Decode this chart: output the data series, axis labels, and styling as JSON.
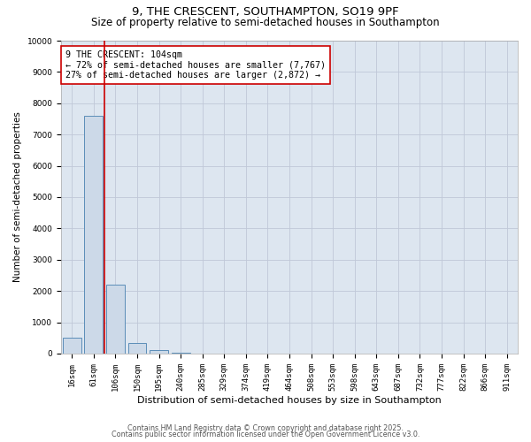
{
  "title": "9, THE CRESCENT, SOUTHAMPTON, SO19 9PF",
  "subtitle": "Size of property relative to semi-detached houses in Southampton",
  "xlabel": "Distribution of semi-detached houses by size in Southampton",
  "ylabel": "Number of semi-detached properties",
  "categories": [
    "16sqm",
    "61sqm",
    "106sqm",
    "150sqm",
    "195sqm",
    "240sqm",
    "285sqm",
    "329sqm",
    "374sqm",
    "419sqm",
    "464sqm",
    "508sqm",
    "553sqm",
    "598sqm",
    "643sqm",
    "687sqm",
    "732sqm",
    "777sqm",
    "822sqm",
    "866sqm",
    "911sqm"
  ],
  "values": [
    500,
    7600,
    2200,
    350,
    110,
    15,
    0,
    0,
    0,
    0,
    0,
    0,
    0,
    0,
    0,
    0,
    0,
    0,
    0,
    0,
    0
  ],
  "bar_color": "#ccd9e8",
  "bar_edge_color": "#5b8db8",
  "property_line_color": "#cc0000",
  "annotation_text": "9 THE CRESCENT: 104sqm\n← 72% of semi-detached houses are smaller (7,767)\n27% of semi-detached houses are larger (2,872) →",
  "annotation_box_color": "#cc0000",
  "ylim": [
    0,
    10000
  ],
  "yticks": [
    0,
    1000,
    2000,
    3000,
    4000,
    5000,
    6000,
    7000,
    8000,
    9000,
    10000
  ],
  "grid_color": "#c0c8d8",
  "background_color": "#dde6f0",
  "footer_line1": "Contains HM Land Registry data © Crown copyright and database right 2025.",
  "footer_line2": "Contains public sector information licensed under the Open Government Licence v3.0.",
  "title_fontsize": 9.5,
  "subtitle_fontsize": 8.5,
  "tick_fontsize": 6.5,
  "xlabel_fontsize": 8,
  "ylabel_fontsize": 7.5,
  "annotation_fontsize": 7.2,
  "footer_fontsize": 5.8
}
